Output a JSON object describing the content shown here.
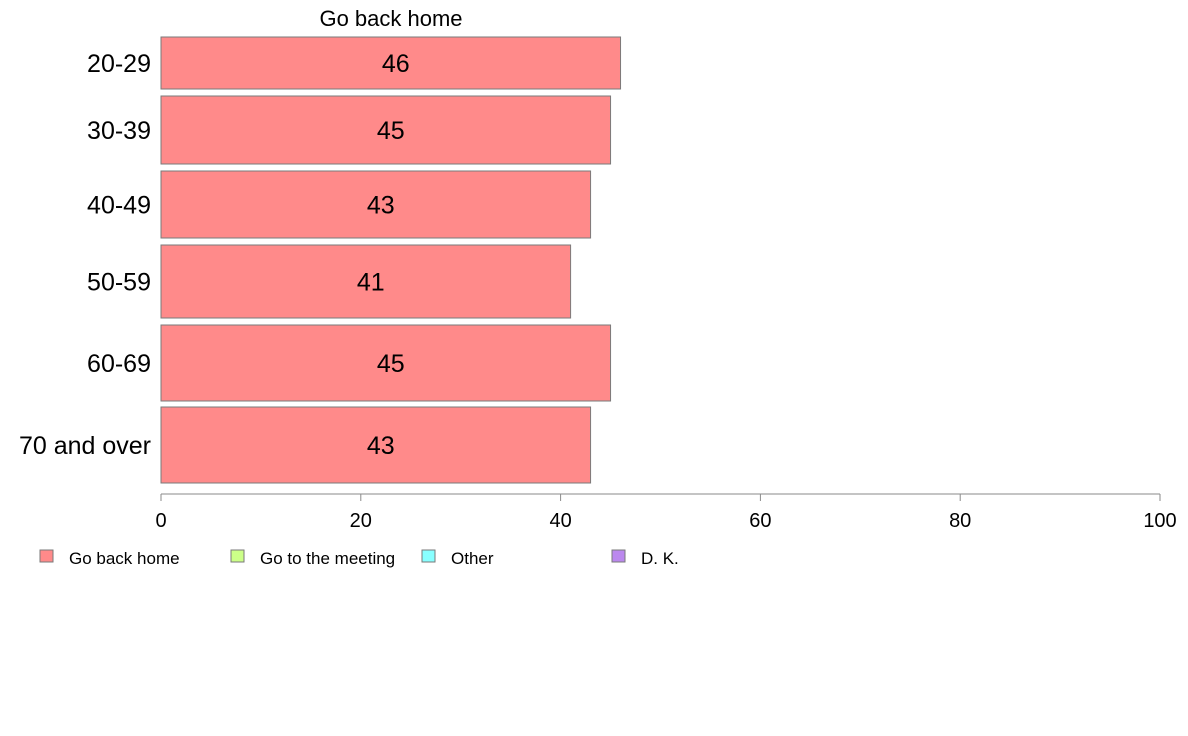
{
  "chart_data": {
    "type": "bar",
    "orientation": "horizontal",
    "categories": [
      "20-29",
      "30-39",
      "40-49",
      "50-59",
      "60-69",
      "70 and over"
    ],
    "series": [
      {
        "name": "Go back home",
        "values": [
          46,
          45,
          43,
          41,
          45,
          43
        ],
        "color": "#ff8a8a"
      }
    ],
    "data_labels": [
      "46",
      "45",
      "43",
      "41",
      "45",
      "43"
    ],
    "series_title": "Go back home",
    "xlim": [
      0,
      100
    ],
    "x_ticks": [
      "0",
      "20",
      "40",
      "60",
      "80",
      "100"
    ],
    "grid": false,
    "legend": {
      "position": "bottom",
      "items": [
        {
          "label": "Go back home",
          "color": "#ff8a8a"
        },
        {
          "label": "Go to the meeting",
          "color": "#ccff88"
        },
        {
          "label": "Other",
          "color": "#88ffff"
        },
        {
          "label": "D. K.",
          "color": "#bb88ee"
        }
      ]
    }
  }
}
